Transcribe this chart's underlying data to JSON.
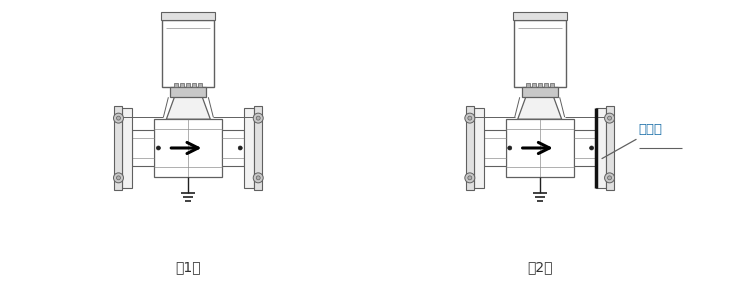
{
  "bg_color": "#ffffff",
  "lc": "#606060",
  "lc_dark": "#202020",
  "lc_thin": "#909090",
  "fill_white": "#ffffff",
  "fill_light": "#f2f2f2",
  "fill_mid": "#e0e0e0",
  "fill_dark": "#c8c8c8",
  "fill_darker": "#b0b0b0",
  "label1": "（1）",
  "label2": "（2）",
  "annotation": "接地环",
  "ann_color": "#1a6ea8",
  "fig_width": 7.5,
  "fig_height": 2.9,
  "dpi": 100
}
